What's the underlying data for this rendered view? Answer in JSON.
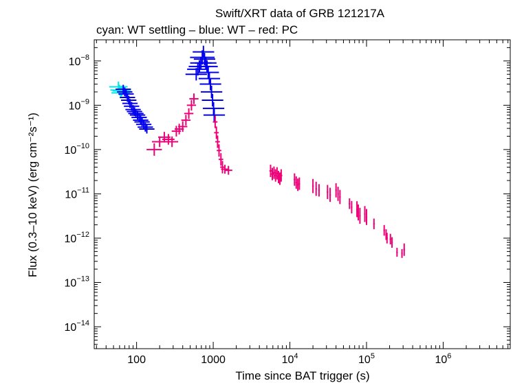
{
  "chart_data": {
    "type": "scatter",
    "title": "Swift/XRT data of GRB 121217A",
    "subtitle": "cyan: WT settling – blue: WT – red: PC",
    "xlabel": "Time since BAT trigger (s)",
    "ylabel": "Flux (0.3–10 keV) (erg cm⁻²s⁻¹)",
    "xscale": "log",
    "yscale": "log",
    "xlim": [
      28,
      7500000
    ],
    "ylim": [
      3.2e-15,
      3e-08
    ],
    "x_ticks": [
      {
        "value": 100,
        "base": "100",
        "exp": ""
      },
      {
        "value": 1000,
        "base": "1000",
        "exp": ""
      },
      {
        "value": 10000,
        "base": "10",
        "exp": "4"
      },
      {
        "value": 100000,
        "base": "10",
        "exp": "5"
      },
      {
        "value": 1000000,
        "base": "10",
        "exp": "6"
      }
    ],
    "y_ticks": [
      {
        "value": 1e-14,
        "base": "10",
        "exp": "−14"
      },
      {
        "value": 1e-13,
        "base": "10",
        "exp": "−13"
      },
      {
        "value": 1e-12,
        "base": "10",
        "exp": "−12"
      },
      {
        "value": 1e-11,
        "base": "10",
        "exp": "−11"
      },
      {
        "value": 1e-10,
        "base": "10",
        "exp": "−10"
      },
      {
        "value": 1e-09,
        "base": "10",
        "exp": "−9"
      },
      {
        "value": 1e-08,
        "base": "10",
        "exp": "−8"
      }
    ],
    "grid": false,
    "series": [
      {
        "color": "#00e5e5",
        "points": [
          [
            58,
            2.6e-09,
            0.12
          ],
          [
            60,
            2.2e-09,
            0.12
          ],
          [
            62,
            1.9e-09,
            0.12
          ],
          [
            64,
            2.1e-09,
            0.12
          ]
        ]
      },
      {
        "color": "#0000ee",
        "points": [
          [
            67,
            2.3e-09,
            0.1
          ],
          [
            70,
            2e-09,
            0.1
          ],
          [
            73,
            1.8e-09,
            0.1
          ],
          [
            76,
            1.5e-09,
            0.1
          ],
          [
            79,
            1.3e-09,
            0.1
          ],
          [
            82,
            1.1e-09,
            0.1
          ],
          [
            86,
            9.5e-10,
            0.1
          ],
          [
            90,
            8e-10,
            0.1
          ],
          [
            94,
            7.2e-10,
            0.1
          ],
          [
            98,
            6.5e-10,
            0.1
          ],
          [
            103,
            6e-10,
            0.1
          ],
          [
            108,
            5.3e-10,
            0.1
          ],
          [
            113,
            4.6e-10,
            0.1
          ],
          [
            118,
            4.2e-10,
            0.1
          ],
          [
            124,
            3.7e-10,
            0.1
          ],
          [
            130,
            3.2e-10,
            0.1
          ],
          [
            136,
            2.9e-10,
            0.1
          ],
          [
            600,
            5e-09,
            0.14
          ],
          [
            630,
            6.5e-09,
            0.14
          ],
          [
            660,
            7.5e-09,
            0.14
          ],
          [
            690,
            9e-09,
            0.14
          ],
          [
            720,
            1.2e-08,
            0.16
          ],
          [
            745,
            1.6e-08,
            0.14
          ],
          [
            770,
            1.1e-08,
            0.14
          ],
          [
            800,
            9e-09,
            0.14
          ],
          [
            830,
            7.5e-09,
            0.14
          ],
          [
            860,
            5.5e-09,
            0.14
          ],
          [
            890,
            4e-09,
            0.14
          ],
          [
            920,
            3e-09,
            0.14
          ],
          [
            950,
            2e-09,
            0.14
          ],
          [
            980,
            1.3e-09,
            0.14
          ],
          [
            1010,
            8.5e-10,
            0.14
          ],
          [
            1030,
            6e-10,
            0.14
          ]
        ]
      },
      {
        "color": "#ee0077",
        "points": [
          [
            170,
            1e-10,
            0.1,
            0.14
          ],
          [
            200,
            1.5e-10,
            0.1,
            0.12
          ],
          [
            230,
            1.9e-10,
            0.08,
            0.12
          ],
          [
            260,
            1.7e-10,
            0.08,
            0.12
          ],
          [
            290,
            1.5e-10,
            0.08,
            0.12
          ],
          [
            330,
            2.6e-10,
            0.06,
            0.12
          ],
          [
            360,
            2.9e-10,
            0.06,
            0.12
          ],
          [
            400,
            3.3e-10,
            0.06,
            0.12
          ],
          [
            440,
            4.6e-10,
            0.06,
            0.12
          ],
          [
            480,
            6.5e-10,
            0.06,
            0.12
          ],
          [
            520,
            1e-09,
            0.06,
            0.12
          ],
          [
            560,
            1.4e-09,
            0.06,
            0.12
          ],
          [
            1060,
            4.2e-10,
            0.03,
            0.14
          ],
          [
            1100,
            2.4e-10,
            0.03,
            0.14
          ],
          [
            1140,
            1.5e-10,
            0.03,
            0.14
          ],
          [
            1190,
            9.5e-11,
            0.03,
            0.14
          ],
          [
            1260,
            6e-11,
            0.03,
            0.14
          ],
          [
            1320,
            4e-11,
            0.03,
            0.14
          ],
          [
            1420,
            3.6e-11,
            0.05,
            0.1
          ],
          [
            1580,
            3.4e-11,
            0.05,
            0.1
          ],
          [
            5600,
            3.3e-11,
            0.015,
            0.14
          ],
          [
            5900,
            2.8e-11,
            0.015,
            0.14
          ],
          [
            6200,
            3e-11,
            0.015,
            0.14
          ],
          [
            6500,
            2.6e-11,
            0.015,
            0.14
          ],
          [
            6800,
            2.9e-11,
            0.015,
            0.14
          ],
          [
            7100,
            2.4e-11,
            0.015,
            0.14
          ],
          [
            7400,
            2.2e-11,
            0.015,
            0.14
          ],
          [
            7700,
            2.6e-11,
            0.015,
            0.14
          ],
          [
            11500,
            2.1e-11,
            0.01,
            0.14
          ],
          [
            12100,
            1.8e-11,
            0.01,
            0.14
          ],
          [
            12700,
            1.6e-11,
            0.01,
            0.14
          ],
          [
            13300,
            1.7e-11,
            0.01,
            0.14
          ],
          [
            20000,
            1.5e-11,
            0.01,
            0.16
          ],
          [
            22000,
            1.3e-11,
            0.01,
            0.16
          ],
          [
            24000,
            1.2e-11,
            0.01,
            0.14
          ],
          [
            31000,
            1.1e-11,
            0.01,
            0.16
          ],
          [
            33500,
            9.5e-12,
            0.01,
            0.16
          ],
          [
            40000,
            1.2e-11,
            0.01,
            0.16
          ],
          [
            42500,
            1e-11,
            0.01,
            0.16
          ],
          [
            45000,
            8.5e-12,
            0.01,
            0.16
          ],
          [
            60000,
            6e-12,
            0.01,
            0.12
          ],
          [
            64000,
            5e-12,
            0.01,
            0.14
          ],
          [
            75000,
            4.5e-12,
            0.01,
            0.18
          ],
          [
            78000,
            3.8e-12,
            0.01,
            0.18
          ],
          [
            82000,
            3.2e-12,
            0.01,
            0.18
          ],
          [
            95000,
            3.5e-12,
            0.01,
            0.18
          ],
          [
            100000,
            3e-12,
            0.01,
            0.18
          ],
          [
            125000,
            2.1e-12,
            0.01,
            0.12
          ],
          [
            170000,
            1.5e-12,
            0.01,
            0.12
          ],
          [
            180000,
            1.2e-12,
            0.01,
            0.12
          ],
          [
            185000,
            1e-12,
            0.01,
            0.12
          ],
          [
            205000,
            9.5e-13,
            0.01,
            0.12
          ],
          [
            215000,
            8e-13,
            0.01,
            0.12
          ],
          [
            250000,
            4.8e-13,
            0.01,
            0.1
          ],
          [
            290000,
            4.5e-13,
            0.01,
            0.1
          ],
          [
            310000,
            5.5e-13,
            0.01,
            0.14
          ]
        ]
      }
    ]
  }
}
